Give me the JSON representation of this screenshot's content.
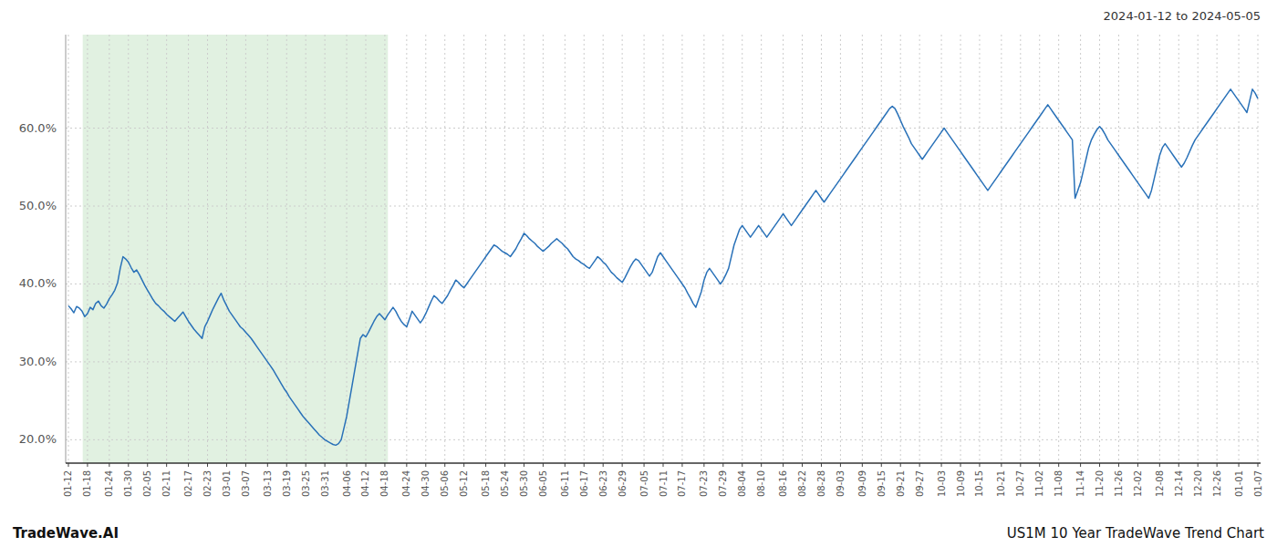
{
  "chart_data": {
    "type": "line",
    "title": "2024-01-12 to 2024-05-05",
    "annotations": [
      "TradeWave.AI",
      "US1M 10 Year TradeWave Trend Chart"
    ],
    "color": "#2971b8",
    "grid": true,
    "shaded_span": {
      "start": 5.244,
      "end": 117.116,
      "color": "#c8e6c8"
    },
    "ylim": [
      17,
      72
    ],
    "yticks": [
      {
        "value": 20,
        "label": "20.0%"
      },
      {
        "value": 30,
        "label": "30.0%"
      },
      {
        "value": 40,
        "label": "40.0%"
      },
      {
        "value": 50,
        "label": "50.0%"
      },
      {
        "value": 60,
        "label": "60.0%"
      }
    ],
    "categories": [
      "01-12",
      null,
      null,
      null,
      null,
      null,
      null,
      "01-18",
      null,
      null,
      null,
      null,
      null,
      null,
      null,
      "01-24",
      null,
      null,
      null,
      null,
      null,
      null,
      "01-30",
      null,
      null,
      null,
      null,
      null,
      null,
      "02-05",
      null,
      null,
      null,
      null,
      null,
      null,
      "02-11",
      null,
      null,
      null,
      null,
      null,
      null,
      null,
      "02-17",
      null,
      null,
      null,
      null,
      null,
      null,
      "02-23",
      null,
      null,
      null,
      null,
      null,
      null,
      "03-01",
      null,
      null,
      null,
      null,
      null,
      null,
      "03-07",
      null,
      null,
      null,
      null,
      null,
      null,
      null,
      "03-13",
      null,
      null,
      null,
      null,
      null,
      null,
      "03-19",
      null,
      null,
      null,
      null,
      null,
      null,
      "03-25",
      null,
      null,
      null,
      null,
      null,
      null,
      "03-31",
      null,
      null,
      null,
      null,
      null,
      null,
      null,
      "04-06",
      null,
      null,
      null,
      null,
      null,
      null,
      "04-12",
      null,
      null,
      null,
      null,
      null,
      null,
      "04-18",
      null,
      null,
      null,
      null,
      null,
      null,
      null,
      "04-24",
      null,
      null,
      null,
      null,
      null,
      null,
      "04-30",
      null,
      null,
      null,
      null,
      null,
      null,
      "05-06",
      null,
      null,
      null,
      null,
      null,
      null,
      "05-12",
      null,
      null,
      null,
      null,
      null,
      null,
      null,
      "05-18",
      null,
      null,
      null,
      null,
      null,
      null,
      "05-24",
      null,
      null,
      null,
      null,
      null,
      null,
      "05-30",
      null,
      null,
      null,
      null,
      null,
      null,
      "06-05",
      null,
      null,
      null,
      null,
      null,
      null,
      null,
      "06-11",
      null,
      null,
      null,
      null,
      null,
      null,
      "06-17",
      null,
      null,
      null,
      null,
      null,
      null,
      "06-23",
      null,
      null,
      null,
      null,
      null,
      null,
      "06-29",
      null,
      null,
      null,
      null,
      null,
      null,
      null,
      "07-05",
      null,
      null,
      null,
      null,
      null,
      null,
      "07-11",
      null,
      null,
      null,
      null,
      null,
      null,
      "07-17",
      null,
      null,
      null,
      null,
      null,
      null,
      null,
      "07-23",
      null,
      null,
      null,
      null,
      null,
      null,
      "07-29",
      null,
      null,
      null,
      null,
      null,
      null,
      "08-04",
      null,
      null,
      null,
      null,
      null,
      null,
      "08-10",
      null,
      null,
      null,
      null,
      null,
      null,
      null,
      "08-16",
      null,
      null,
      null,
      null,
      null,
      null,
      "08-22",
      null,
      null,
      null,
      null,
      null,
      null,
      "08-28",
      null,
      null,
      null,
      null,
      null,
      null,
      "09-03",
      null,
      null,
      null,
      null,
      null,
      null,
      null,
      "09-09",
      null,
      null,
      null,
      null,
      null,
      null,
      "09-15",
      null,
      null,
      null,
      null,
      null,
      null,
      "09-21",
      null,
      null,
      null,
      null,
      null,
      null,
      "09-27",
      null,
      null,
      null,
      null,
      null,
      null,
      null,
      "10-03",
      null,
      null,
      null,
      null,
      null,
      null,
      "10-09",
      null,
      null,
      null,
      null,
      null,
      null,
      "10-15",
      null,
      null,
      null,
      null,
      null,
      null,
      null,
      "10-21",
      null,
      null,
      null,
      null,
      null,
      null,
      "10-27",
      null,
      null,
      null,
      null,
      null,
      null,
      "11-02",
      null,
      null,
      null,
      null,
      null,
      null,
      "11-08",
      null,
      null,
      null,
      null,
      null,
      null,
      null,
      "11-14",
      null,
      null,
      null,
      null,
      null,
      null,
      "11-20",
      null,
      null,
      null,
      null,
      null,
      null,
      "11-26",
      null,
      null,
      null,
      null,
      null,
      null,
      "12-02",
      null,
      null,
      null,
      null,
      null,
      null,
      null,
      "12-08",
      null,
      null,
      null,
      null,
      null,
      null,
      "12-14",
      null,
      null,
      null,
      null,
      null,
      null,
      "12-20",
      null,
      null,
      null,
      null,
      null,
      null,
      "12-26",
      null,
      null,
      null,
      null,
      null,
      null,
      null,
      "01-01",
      null,
      null,
      null,
      null,
      null,
      null,
      "01-07"
    ],
    "values": [
      37.2,
      36.8,
      36.3,
      37.1,
      36.9,
      36.5,
      35.8,
      36.2,
      37.0,
      36.7,
      37.5,
      37.8,
      37.2,
      36.9,
      37.4,
      38.1,
      38.6,
      39.2,
      40.1,
      42.0,
      43.5,
      43.2,
      42.8,
      42.1,
      41.5,
      41.8,
      41.2,
      40.5,
      39.8,
      39.2,
      38.6,
      38.0,
      37.5,
      37.2,
      36.8,
      36.5,
      36.1,
      35.8,
      35.5,
      35.2,
      35.6,
      36.0,
      36.4,
      35.8,
      35.2,
      34.7,
      34.2,
      33.8,
      33.4,
      33.0,
      34.5,
      35.2,
      36.0,
      36.8,
      37.5,
      38.2,
      38.8,
      37.9,
      37.2,
      36.5,
      36.0,
      35.5,
      35.0,
      34.5,
      34.2,
      33.8,
      33.4,
      33.0,
      32.5,
      32.0,
      31.5,
      31.0,
      30.5,
      30.0,
      29.5,
      29.0,
      28.4,
      27.8,
      27.2,
      26.6,
      26.1,
      25.5,
      25.0,
      24.5,
      24.0,
      23.5,
      23.0,
      22.6,
      22.2,
      21.8,
      21.4,
      21.0,
      20.6,
      20.3,
      20.0,
      19.8,
      19.6,
      19.4,
      19.3,
      19.5,
      20.0,
      21.5,
      23.0,
      25.0,
      27.0,
      29.0,
      31.0,
      33.0,
      33.5,
      33.2,
      33.8,
      34.5,
      35.2,
      35.8,
      36.2,
      35.8,
      35.4,
      36.0,
      36.5,
      37.0,
      36.5,
      35.8,
      35.2,
      34.8,
      34.5,
      35.5,
      36.5,
      36.0,
      35.5,
      35.0,
      35.5,
      36.2,
      37.0,
      37.8,
      38.5,
      38.2,
      37.8,
      37.5,
      38.0,
      38.5,
      39.2,
      39.8,
      40.5,
      40.2,
      39.8,
      39.5,
      40.0,
      40.5,
      41.0,
      41.5,
      42.0,
      42.5,
      43.0,
      43.5,
      44.0,
      44.5,
      45.0,
      44.8,
      44.5,
      44.2,
      44.0,
      43.8,
      43.5,
      44.0,
      44.5,
      45.2,
      45.8,
      46.5,
      46.2,
      45.8,
      45.5,
      45.2,
      44.8,
      44.5,
      44.2,
      44.5,
      44.8,
      45.2,
      45.5,
      45.8,
      45.5,
      45.2,
      44.8,
      44.5,
      44.0,
      43.5,
      43.2,
      43.0,
      42.7,
      42.5,
      42.2,
      42.0,
      42.5,
      43.0,
      43.5,
      43.2,
      42.8,
      42.5,
      42.0,
      41.5,
      41.2,
      40.8,
      40.5,
      40.2,
      40.8,
      41.5,
      42.2,
      42.8,
      43.2,
      43.0,
      42.5,
      42.0,
      41.5,
      41.0,
      41.5,
      42.5,
      43.5,
      44.0,
      43.5,
      43.0,
      42.5,
      42.0,
      41.5,
      41.0,
      40.5,
      40.0,
      39.5,
      38.8,
      38.2,
      37.5,
      37.0,
      38.0,
      39.0,
      40.5,
      41.5,
      42.0,
      41.5,
      41.0,
      40.5,
      40.0,
      40.5,
      41.2,
      42.0,
      43.5,
      45.0,
      46.0,
      47.0,
      47.5,
      47.0,
      46.5,
      46.0,
      46.5,
      47.0,
      47.5,
      47.0,
      46.5,
      46.0,
      46.5,
      47.0,
      47.5,
      48.0,
      48.5,
      49.0,
      48.5,
      48.0,
      47.5,
      48.0,
      48.5,
      49.0,
      49.5,
      50.0,
      50.5,
      51.0,
      51.5,
      52.0,
      51.5,
      51.0,
      50.5,
      51.0,
      51.5,
      52.0,
      52.5,
      53.0,
      53.5,
      54.0,
      54.5,
      55.0,
      55.5,
      56.0,
      56.5,
      57.0,
      57.5,
      58.0,
      58.5,
      59.0,
      59.5,
      60.0,
      60.5,
      61.0,
      61.5,
      62.0,
      62.5,
      62.8,
      62.5,
      61.8,
      61.0,
      60.2,
      59.5,
      58.8,
      58.0,
      57.5,
      57.0,
      56.5,
      56.0,
      56.5,
      57.0,
      57.5,
      58.0,
      58.5,
      59.0,
      59.5,
      60.0,
      59.5,
      59.0,
      58.5,
      58.0,
      57.5,
      57.0,
      56.5,
      56.0,
      55.5,
      55.0,
      54.5,
      54.0,
      53.5,
      53.0,
      52.5,
      52.0,
      52.5,
      53.0,
      53.5,
      54.0,
      54.5,
      55.0,
      55.5,
      56.0,
      56.5,
      57.0,
      57.5,
      58.0,
      58.5,
      59.0,
      59.5,
      60.0,
      60.5,
      61.0,
      61.5,
      62.0,
      62.5,
      63.0,
      62.5,
      62.0,
      61.5,
      61.0,
      60.5,
      60.0,
      59.5,
      59.0,
      58.5,
      51.0,
      52.0,
      53.0,
      54.5,
      56.0,
      57.5,
      58.5,
      59.2,
      59.8,
      60.2,
      59.8,
      59.2,
      58.5,
      58.0,
      57.5,
      57.0,
      56.5,
      56.0,
      55.5,
      55.0,
      54.5,
      54.0,
      53.5,
      53.0,
      52.5,
      52.0,
      51.5,
      51.0,
      52.0,
      53.5,
      55.0,
      56.5,
      57.5,
      58.0,
      57.5,
      57.0,
      56.5,
      56.0,
      55.5,
      55.0,
      55.5,
      56.2,
      57.0,
      57.8,
      58.5,
      59.0,
      59.5,
      60.0,
      60.5,
      61.0,
      61.5,
      62.0,
      62.5,
      63.0,
      63.5,
      64.0,
      64.5,
      65.0,
      64.5,
      64.0,
      63.5,
      63.0,
      62.5,
      62.0,
      63.5,
      65.0,
      64.5,
      63.8
    ]
  }
}
